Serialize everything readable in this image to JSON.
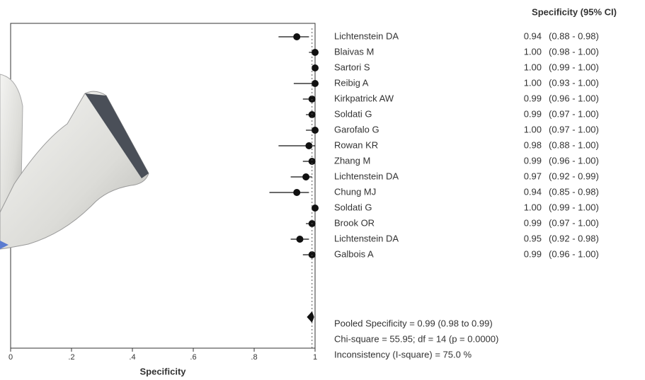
{
  "chart_data": {
    "type": "forest",
    "xlabel": "Specificity",
    "column_header": "Specificity (95% CI)",
    "xlim": [
      0,
      1
    ],
    "xticks": [
      0,
      {
        "value": 0.2,
        "label": ".2"
      },
      {
        "value": 0.4,
        "label": ".4"
      },
      {
        "value": 0.6,
        "label": ".6"
      },
      {
        "value": 0.8,
        "label": ".8"
      },
      1
    ],
    "color": "#111111",
    "categories": [
      "Lichtenstein DA",
      "Blaivas M",
      "Sartori S",
      "Reibig A",
      "Kirkpatrick AW",
      "Soldati G",
      "Garofalo G",
      "Rowan KR",
      "Zhang M",
      "Lichtenstein DA",
      "Chung MJ",
      "Soldati G",
      "Brook OR",
      "Lichtenstein DA",
      "Galbois A"
    ],
    "values": [
      0.94,
      1.0,
      1.0,
      1.0,
      0.99,
      0.99,
      1.0,
      0.98,
      0.99,
      0.97,
      0.94,
      1.0,
      0.99,
      0.95,
      0.99
    ],
    "value_labels": [
      "0.94",
      "1.00",
      "1.00",
      "1.00",
      "0.99",
      "0.99",
      "1.00",
      "0.98",
      "0.99",
      "0.97",
      "0.94",
      "1.00",
      "0.99",
      "0.95",
      "0.99"
    ],
    "lower": [
      0.88,
      0.98,
      0.99,
      0.93,
      0.96,
      0.97,
      0.97,
      0.88,
      0.96,
      0.92,
      0.85,
      0.99,
      0.97,
      0.92,
      0.96
    ],
    "upper": [
      0.98,
      1.0,
      1.0,
      1.0,
      1.0,
      1.0,
      1.0,
      1.0,
      1.0,
      0.99,
      0.98,
      1.0,
      1.0,
      0.98,
      1.0
    ],
    "ci_labels": [
      "(0.88 - 0.98)",
      "(0.98 - 1.00)",
      "(0.99 - 1.00)",
      "(0.93 - 1.00)",
      "(0.96 - 1.00)",
      "(0.97 - 1.00)",
      "(0.97 - 1.00)",
      "(0.88 - 1.00)",
      "(0.96 - 1.00)",
      "(0.92 - 0.99)",
      "(0.85 - 0.98)",
      "(0.99 - 1.00)",
      "(0.97 - 1.00)",
      "(0.92 - 0.98)",
      "(0.96 - 1.00)"
    ],
    "pooled": {
      "value": 0.99,
      "lower": 0.98,
      "upper": 0.99,
      "label": "Pooled Specificity = 0.99 (0.98 to 0.99)"
    },
    "heterogeneity": [
      "Chi-square = 55.95; df =  14 (p = 0.0000)",
      "Inconsistency (I-square) = 75.0 %"
    ]
  }
}
